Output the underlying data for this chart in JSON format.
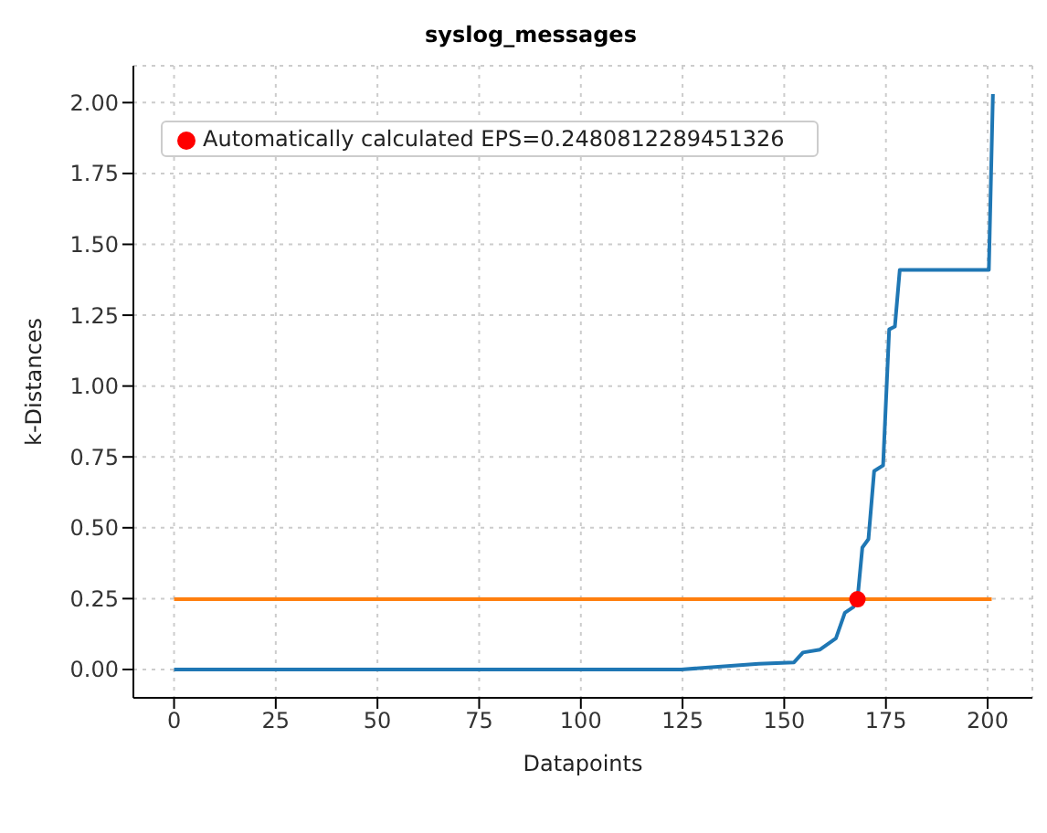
{
  "chart_data": {
    "type": "line",
    "title": "syslog_messages",
    "xlabel": "Datapoints",
    "ylabel": "k-Distances",
    "series": [
      {
        "color": "#1f77b4",
        "x": [
          0,
          100,
          124.7,
          143.7,
          152.4,
          154.6,
          158.8,
          162.7,
          164.9,
          167,
          168,
          169.2,
          170.7,
          172.1,
          174.3,
          175.8,
          177.2,
          178.4,
          200.3,
          201.3
        ],
        "values": [
          0,
          0,
          0,
          0.02,
          0.025,
          0.06,
          0.07,
          0.11,
          0.2,
          0.22,
          0.248,
          0.43,
          0.46,
          0.7,
          0.72,
          1.2,
          1.21,
          1.41,
          1.41,
          2.03
        ]
      },
      {
        "color": "#ff7f0e",
        "x": [
          0,
          201
        ],
        "values": [
          0.248,
          0.248
        ]
      },
      {
        "type": "scatter",
        "name": "Automatically calculated EPS=0.2480812289451326",
        "color": "#ff0000",
        "marker": "circle",
        "x": [
          168
        ],
        "values": [
          0.248
        ]
      }
    ],
    "xlim": [
      -10,
      211
    ],
    "xticks": [
      0,
      25,
      50,
      75,
      100,
      125,
      150,
      175,
      200
    ],
    "ylim": [
      -0.1,
      2.13
    ],
    "yticks": [
      {
        "value": 0,
        "label": "0.00"
      },
      {
        "value": 0.25,
        "label": "0.25"
      },
      {
        "value": 0.5,
        "label": "0.50"
      },
      {
        "value": 0.75,
        "label": "0.75"
      },
      {
        "value": 1,
        "label": "1.00"
      },
      {
        "value": 1.25,
        "label": "1.25"
      },
      {
        "value": 1.5,
        "label": "1.50"
      },
      {
        "value": 1.75,
        "label": "1.75"
      },
      {
        "value": 2,
        "label": "2.00"
      }
    ],
    "grid": true,
    "legend": "top left",
    "line_style": "solid"
  }
}
